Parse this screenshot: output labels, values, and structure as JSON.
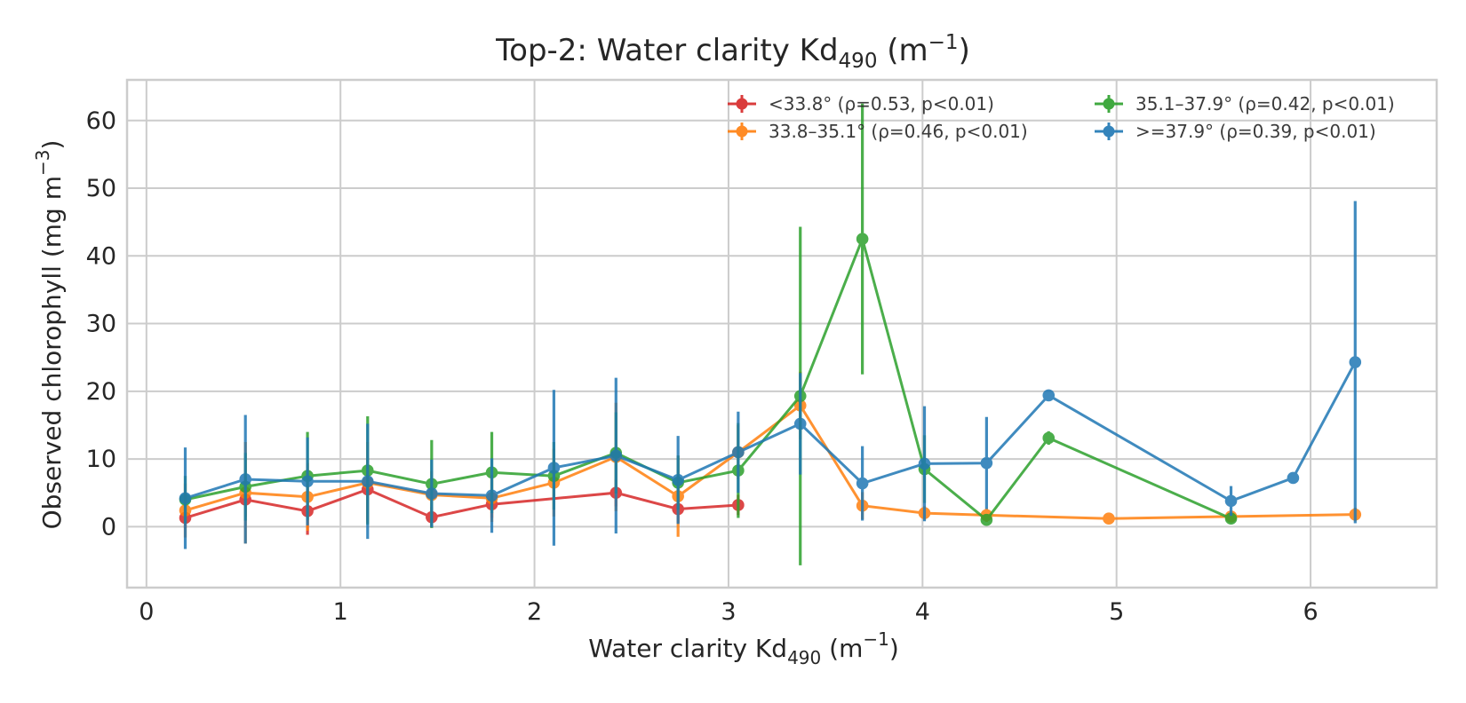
{
  "chart_data": {
    "type": "line",
    "title": {
      "main": "Top-2: Water clarity Kd",
      "sub": "490",
      "unit_open": " (m",
      "sup": "−1",
      "unit_close": ")"
    },
    "xlabel": {
      "main": "Water clarity Kd",
      "sub": "490",
      "unit_open": " (m",
      "sup": "−1",
      "unit_close": ")"
    },
    "ylabel": {
      "main": "Observed chlorophyll (mg m",
      "sup": "−3",
      "unit_close": ")"
    },
    "xlim": [
      -0.1,
      6.65
    ],
    "ylim": [
      -9,
      66
    ],
    "x_ticks": [
      "0",
      "1",
      "2",
      "3",
      "4",
      "5",
      "6"
    ],
    "y_ticks": [
      "0",
      "10",
      "20",
      "30",
      "40",
      "50",
      "60"
    ],
    "grid": true,
    "legend_position": "top-right",
    "legend_columns": 2,
    "series": [
      {
        "name": "<33.8° (ρ=0.53, p<0.01)",
        "color": "#d62728",
        "x": [
          0.2,
          0.51,
          0.83,
          1.14,
          1.47,
          1.78,
          2.42,
          2.74,
          3.05
        ],
        "y": [
          1.3,
          4.0,
          2.3,
          5.5,
          1.4,
          3.3,
          5.0,
          2.6,
          3.2
        ],
        "err": [
          1.5,
          2.5,
          3.5,
          4.5,
          1.5,
          2.0,
          2.0,
          2.0,
          1.5
        ]
      },
      {
        "name": "33.8–35.1° (ρ=0.46, p<0.01)",
        "color": "#ff7f0e",
        "x": [
          0.2,
          0.51,
          0.83,
          1.14,
          1.47,
          1.78,
          2.1,
          2.42,
          2.74,
          3.05,
          3.37,
          3.69,
          4.01,
          4.33,
          4.96,
          5.59,
          6.23
        ],
        "y": [
          2.4,
          5.0,
          4.4,
          6.5,
          4.7,
          4.2,
          6.5,
          10.3,
          4.5,
          11.0,
          17.9,
          3.1,
          2.0,
          1.7,
          1.2,
          1.5,
          1.8
        ],
        "err": [
          4.0,
          7.5,
          5.0,
          6.0,
          3.5,
          3.5,
          5.0,
          8.0,
          6.0,
          4.0,
          5.0,
          2.0,
          1.0,
          1.0,
          0.5,
          0.5,
          1.0
        ]
      },
      {
        "name": "35.1–37.9° (ρ=0.42, p<0.01)",
        "color": "#2ca02c",
        "x": [
          0.2,
          0.51,
          0.83,
          1.14,
          1.47,
          1.78,
          2.1,
          2.42,
          2.74,
          3.05,
          3.37,
          3.69,
          4.01,
          4.33,
          4.65,
          5.59
        ],
        "y": [
          4.0,
          5.9,
          7.5,
          8.3,
          6.3,
          8.0,
          7.5,
          10.9,
          6.5,
          8.3,
          19.3,
          42.5,
          8.5,
          1.0,
          13.1,
          1.2
        ],
        "err": [
          3.5,
          5.0,
          6.5,
          8.0,
          6.5,
          6.0,
          5.0,
          6.0,
          4.0,
          7.0,
          25.0,
          20.0,
          5.0,
          0.8,
          1.0,
          0.8
        ]
      },
      {
        "name": ">=37.9° (ρ=0.39, p<0.01)",
        "color": "#1f77b4",
        "x": [
          0.2,
          0.51,
          0.83,
          1.14,
          1.47,
          1.78,
          2.1,
          2.42,
          2.74,
          3.05,
          3.37,
          3.69,
          4.01,
          4.33,
          4.65,
          5.59,
          5.91,
          6.23
        ],
        "y": [
          4.2,
          7.0,
          6.7,
          6.7,
          4.9,
          4.6,
          8.7,
          10.5,
          6.9,
          11.0,
          15.2,
          6.4,
          9.3,
          9.4,
          19.4,
          3.8,
          7.2,
          24.3
        ],
        "err": [
          7.5,
          9.5,
          6.5,
          8.5,
          5.0,
          5.5,
          11.5,
          11.5,
          6.5,
          6.0,
          7.5,
          5.5,
          8.5,
          6.8,
          0.8,
          2.2,
          0.8,
          23.8
        ]
      }
    ]
  }
}
